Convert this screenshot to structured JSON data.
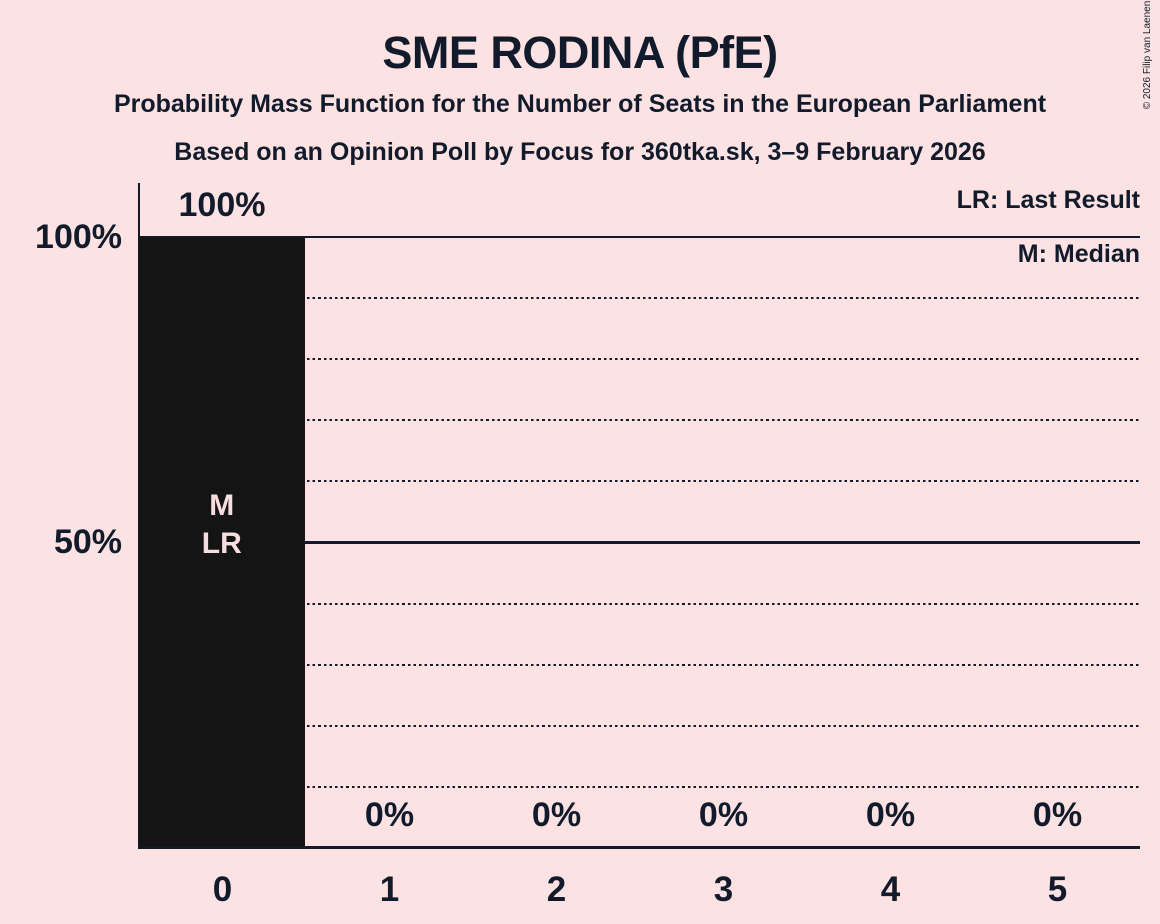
{
  "header": {
    "title": "SME RODINA (PfE)",
    "subtitle": "Probability Mass Function for the Number of Seats in the European Parliament",
    "source_line": "Based on an Opinion Poll by Focus for 360tka.sk, 3–9 February 2026"
  },
  "copyright": "© 2026 Filip van Laenen",
  "legend": {
    "last_result": "LR: Last Result",
    "median": "M: Median"
  },
  "annotations": {
    "median_label": "M",
    "last_result_label": "LR",
    "bar_annotation_text": "M\nLR"
  },
  "colors": {
    "background": "#fce2e2",
    "ink": "#111b2b",
    "bar": "#141414",
    "bar_text": "#f8dde0"
  },
  "chart_data": {
    "type": "bar",
    "title": "SME RODINA (PfE)",
    "subtitle": "Probability Mass Function for the Number of Seats in the European Parliament",
    "source_line": "Based on an Opinion Poll by Focus for 360tka.sk, 3–9 February 2026",
    "categories": [
      "0",
      "1",
      "2",
      "3",
      "4",
      "5"
    ],
    "values": [
      100,
      0,
      0,
      0,
      0,
      0
    ],
    "value_labels": [
      "100%",
      "0%",
      "0%",
      "0%",
      "0%",
      "0%"
    ],
    "xlabel": "",
    "ylabel": "",
    "ylim": [
      0,
      100
    ],
    "y_tick_labels": {
      "100": "100%",
      "50": "50%"
    },
    "y_solid_gridlines": [
      50,
      100
    ],
    "y_dotted_gridlines": [
      10,
      20,
      30,
      40,
      60,
      70,
      80,
      90
    ],
    "grid": "horizontal-only",
    "legend_position": "top-right",
    "median_at_seats": 0,
    "last_result_at_seats": 0
  }
}
